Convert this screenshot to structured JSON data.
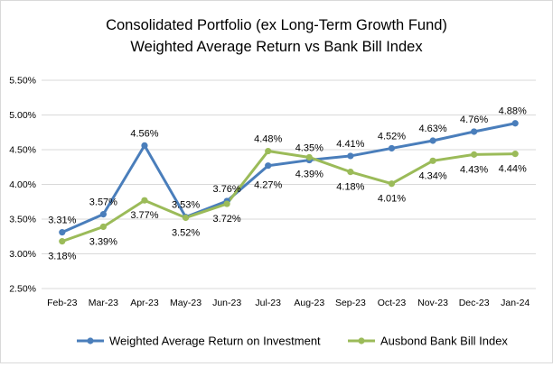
{
  "chart_data": {
    "type": "line",
    "title": "Consolidated Portfolio (ex Long-Term Growth Fund)",
    "subtitle": "Weighted Average Return vs Bank Bill Index",
    "xlabel": "",
    "ylabel": "",
    "ylim": [
      2.5,
      5.5
    ],
    "y_ticks": [
      "2.50%",
      "3.00%",
      "3.50%",
      "4.00%",
      "4.50%",
      "5.00%",
      "5.50%"
    ],
    "grid": true,
    "legend_position": "bottom",
    "categories": [
      "Feb-23",
      "Mar-23",
      "Apr-23",
      "May-23",
      "Jun-23",
      "Jul-23",
      "Aug-23",
      "Sep-23",
      "Oct-23",
      "Nov-23",
      "Dec-23",
      "Jan-24"
    ],
    "series": [
      {
        "name": "Weighted Average Return on Investment",
        "color": "#4a7ebb",
        "values": [
          3.31,
          3.57,
          4.56,
          3.53,
          3.76,
          4.27,
          4.35,
          4.41,
          4.52,
          4.63,
          4.76,
          4.88
        ],
        "labels": [
          "3.31%",
          "3.57%",
          "4.56%",
          "3.53%",
          "3.76%",
          "4.27%",
          "4.35%",
          "4.41%",
          "4.52%",
          "4.63%",
          "4.76%",
          "4.88%"
        ]
      },
      {
        "name": "Ausbond Bank Bill Index",
        "color": "#9bbb59",
        "values": [
          3.18,
          3.39,
          3.77,
          3.52,
          3.72,
          4.48,
          4.39,
          4.18,
          4.01,
          4.34,
          4.43,
          4.44
        ],
        "labels": [
          "3.18%",
          "3.39%",
          "3.77%",
          "3.52%",
          "3.72%",
          "4.48%",
          "4.39%",
          "4.18%",
          "4.01%",
          "4.34%",
          "4.43%",
          "4.44%"
        ]
      }
    ]
  }
}
